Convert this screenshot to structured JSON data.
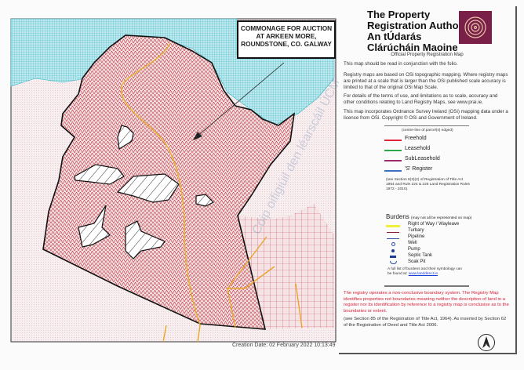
{
  "map": {
    "title_lines": [
      "COMMONAGE FOR AUCTION",
      "AT ARKEEN MORE,",
      "ROUNDSTONE, CO. GALWAY"
    ],
    "creation_date": "Creation Date: 02 February 2022 10:13:49",
    "watermark": "Cóip oifigiúil den léarscáil ÚCM",
    "colors": {
      "parcel_hatch": "#c9444f",
      "water": "#39b7c6",
      "right_of_way": "#e8b12a",
      "boundary": "#111111"
    }
  },
  "panel": {
    "org_lines": [
      "The Property",
      "Registration Authority",
      "An tÚdarás",
      "Clárúcháin Maoine"
    ],
    "logo": "pra-spiral-logo",
    "subtitle": "Official Property Registration Map",
    "para1": "This map should be read in conjunction with the folio.",
    "para2": "Registry maps are based on OSi topographic mapping. Where registry maps are printed at a scale that is larger than the OSi published scale accuracy is limited to that of the original OSi Map Scale.",
    "para3": "For details of the terms of use, and limitations as to scale, accuracy and other conditions relating to Land Registry Maps, see www.prai.ie.",
    "para4": "This map incorporates Ordnance Survey Ireland (OSi) mapping data under a licence from OSi. Copyright © OSi and Government of Ireland.",
    "edged_note": "(centre-line of parcel(s) edged)",
    "tenure": [
      {
        "label": "Freehold",
        "color": "#e0263a"
      },
      {
        "label": "Leasehold",
        "color": "#2aa84a"
      },
      {
        "label": "SubLeasehold",
        "color": "#9c2a6e"
      },
      {
        "label": "'S' Register",
        "color": "#3a6fc4"
      }
    ],
    "section_note": "(see Section 8(3)(2) of Registration of Title Act 1964 and Rule 224 & 225 Land Registration Rules 1972 - 2010).",
    "burdens_title": "Burdens",
    "burdens_note": "(may not all be represented on map)",
    "burdens": [
      {
        "label": "Right of Way / Wayleave",
        "icon": "yellow-line"
      },
      {
        "label": "Turbary",
        "icon": "maroon-line"
      },
      {
        "label": "Pipeline",
        "icon": "blue-line"
      },
      {
        "label": "Well",
        "icon": "open-circle"
      },
      {
        "label": "Pump",
        "icon": "filled-circle"
      },
      {
        "label": "Septic Tank",
        "icon": "filled-rect"
      },
      {
        "label": "Soak Pit",
        "icon": "half-circle"
      }
    ],
    "full_list": "A full list of burdens and their symbology can be found at:",
    "full_list_link": "www.landdirect.ie",
    "disclaimer": "The registry operates a non-conclusive boundary system. The Registry Map identifies properties not boundaries meaning neither the description of land in a register nor its identification by reference to a registry map is conclusive as to the boundaries or extent.",
    "section85": "(see Section 85 of the Registration of Title Act, 1964). As inserted by Section 62 of the Registration of Deed and Title Act 2006.",
    "north_arrow": "N"
  }
}
